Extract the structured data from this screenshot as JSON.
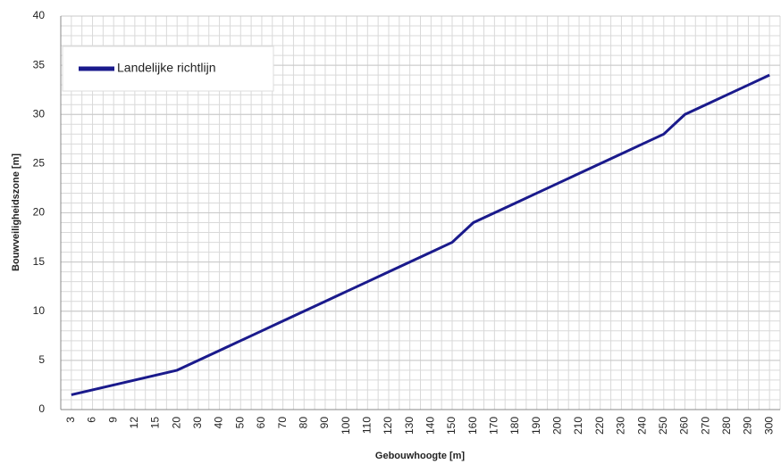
{
  "chart_data": {
    "type": "line",
    "x_label": "Gebouwhoogte [m]",
    "y_label": "Bouwveiligheidszone [m]",
    "categories": [
      "3",
      "6",
      "9",
      "12",
      "15",
      "20",
      "30",
      "40",
      "50",
      "60",
      "70",
      "80",
      "90",
      "100",
      "110",
      "120",
      "130",
      "140",
      "150",
      "160",
      "170",
      "180",
      "190",
      "200",
      "210",
      "220",
      "230",
      "240",
      "250",
      "260",
      "270",
      "280",
      "290",
      "300"
    ],
    "series": [
      {
        "name": "Landelijke richtlijn",
        "color": "#1a1a8c",
        "values": [
          1.5,
          2,
          2.5,
          3,
          3.5,
          4,
          5,
          6,
          7,
          8,
          9,
          10,
          11,
          12,
          13,
          14,
          15,
          16,
          17,
          19,
          20,
          21,
          22,
          23,
          24,
          25,
          26,
          27,
          28,
          30,
          31,
          32,
          33,
          34
        ]
      }
    ],
    "ylim": [
      0,
      40
    ],
    "yticks": [
      0,
      5,
      10,
      15,
      20,
      25,
      30,
      35,
      40
    ],
    "grid": true,
    "legend": "upper left"
  }
}
